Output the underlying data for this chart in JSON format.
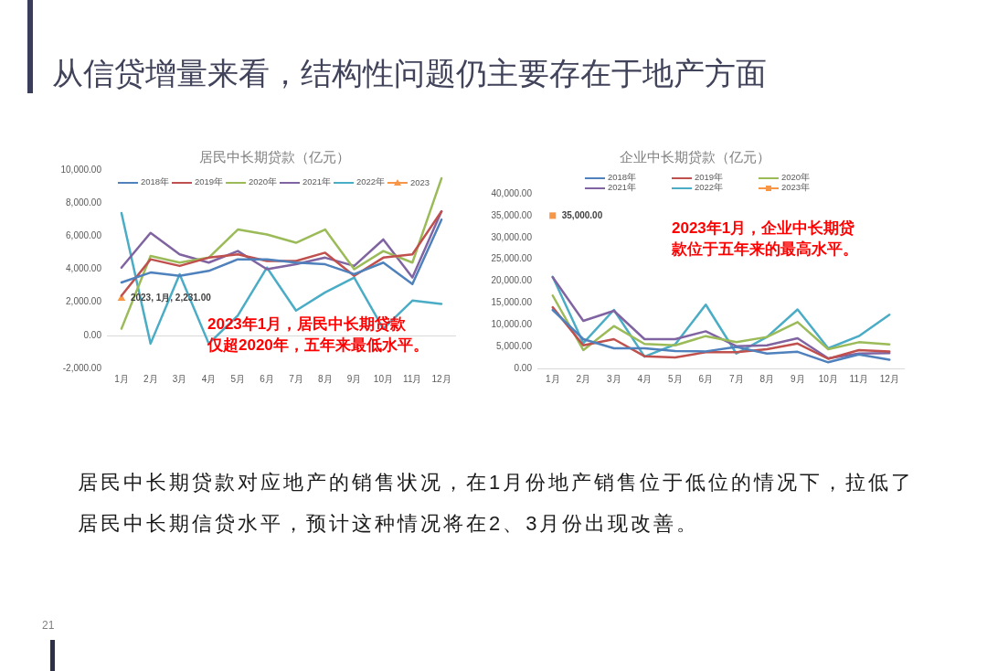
{
  "chart_data": [
    {
      "type": "other",
      "title": "从信贷增量来看，结构性问题仍主要存在于地产方面"
    },
    {
      "type": "line",
      "title": "居民中长期贷款（亿元）",
      "categories": [
        "1月",
        "2月",
        "3月",
        "4月",
        "5月",
        "6月",
        "7月",
        "8月",
        "9月",
        "10月",
        "11月",
        "12月"
      ],
      "series": [
        {
          "name": "2018年",
          "color": "#4f81bd",
          "values": [
            3200,
            3800,
            3600,
            3900,
            4600,
            4600,
            4400,
            4300,
            3700,
            4400,
            3100,
            7000
          ]
        },
        {
          "name": "2019年",
          "color": "#c0504d",
          "values": [
            2400,
            4600,
            4200,
            4700,
            4900,
            4500,
            4500,
            5000,
            3600,
            4700,
            4900,
            7500
          ]
        },
        {
          "name": "2020年",
          "color": "#9bbb59",
          "values": [
            400,
            4800,
            4400,
            4700,
            6400,
            6100,
            5600,
            6400,
            4000,
            5100,
            4400,
            9500
          ]
        },
        {
          "name": "2021年",
          "color": "#8064a2",
          "values": [
            4100,
            6200,
            4900,
            4400,
            5100,
            4000,
            4300,
            4700,
            4200,
            5800,
            3500,
            7500
          ]
        },
        {
          "name": "2022年",
          "color": "#4bacc6",
          "values": [
            7400,
            -500,
            3700,
            -500,
            1200,
            4100,
            1500,
            2600,
            3500,
            400,
            2100,
            1900
          ]
        },
        {
          "name": "2023",
          "color": "#f79646",
          "marker": "triangle",
          "values": [
            2231,
            null,
            null,
            null,
            null,
            null,
            null,
            null,
            null,
            null,
            null,
            null
          ],
          "value_labels": [
            "2023, 1月, 2,231.00",
            null,
            null,
            null,
            null,
            null,
            null,
            null,
            null,
            null,
            null,
            null
          ]
        }
      ],
      "ylim": [
        -2000,
        10000
      ],
      "yticks": [
        {
          "value": -2000,
          "label": "-2,000.00"
        },
        {
          "value": 0,
          "label": "0.00"
        },
        {
          "value": 2000,
          "label": "2,000.00"
        },
        {
          "value": 4000,
          "label": "4,000.00"
        },
        {
          "value": 6000,
          "label": "6,000.00"
        },
        {
          "value": 8000,
          "label": "8,000.00"
        },
        {
          "value": 10000,
          "label": "10,000.00"
        }
      ],
      "legend": "top",
      "marker": "none",
      "annotations": [
        "2023年1月，居民中长期贷款仅超2020年，五年来最低水平。"
      ]
    },
    {
      "type": "line",
      "title": "企业中长期贷款（亿元）",
      "categories": [
        "1月",
        "2月",
        "3月",
        "4月",
        "5月",
        "6月",
        "7月",
        "8月",
        "9月",
        "10月",
        "11月",
        "12月"
      ],
      "series": [
        {
          "name": "2018年",
          "color": "#4f81bd",
          "values": [
            13400,
            6700,
            4600,
            4600,
            4000,
            3900,
            4900,
            3400,
            3800,
            1400,
            3200,
            2000
          ]
        },
        {
          "name": "2019年",
          "color": "#c0504d",
          "values": [
            14000,
            5300,
            6700,
            2800,
            2500,
            3700,
            3700,
            4400,
            5700,
            2200,
            4200,
            3900
          ]
        },
        {
          "name": "2020年",
          "color": "#9bbb59",
          "values": [
            16700,
            4200,
            9700,
            5600,
            5300,
            7400,
            6000,
            7200,
            10600,
            4400,
            6000,
            5500
          ]
        },
        {
          "name": "2021年",
          "color": "#8064a2",
          "values": [
            20900,
            10900,
            13200,
            6700,
            6700,
            8500,
            5100,
            5300,
            6900,
            2300,
            3400,
            3500
          ]
        },
        {
          "name": "2022年",
          "color": "#4bacc6",
          "values": [
            21000,
            5800,
            13400,
            2700,
            5500,
            14600,
            3400,
            7200,
            13500,
            4600,
            7400,
            12300
          ]
        },
        {
          "name": "2023年",
          "color": "#f79646",
          "marker": "square",
          "values": [
            35000,
            null,
            null,
            null,
            null,
            null,
            null,
            null,
            null,
            null,
            null,
            null
          ],
          "value_labels": [
            "35,000.00",
            null,
            null,
            null,
            null,
            null,
            null,
            null,
            null,
            null,
            null,
            null
          ]
        }
      ],
      "ylim": [
        0,
        40000
      ],
      "yticks": [
        {
          "value": 0,
          "label": "0.00"
        },
        {
          "value": 5000,
          "label": "5,000.00"
        },
        {
          "value": 10000,
          "label": "10,000.00"
        },
        {
          "value": 15000,
          "label": "15,000.00"
        },
        {
          "value": 20000,
          "label": "20,000.00"
        },
        {
          "value": 25000,
          "label": "25,000.00"
        },
        {
          "value": 30000,
          "label": "30,000.00"
        },
        {
          "value": 35000,
          "label": "35,000.00"
        },
        {
          "value": 40000,
          "label": "40,000.00"
        }
      ],
      "legend": "top",
      "marker": "none",
      "annotations": [
        "2023年1月，企业中长期贷款位于五年来的最高水平。"
      ]
    },
    {
      "type": "other",
      "annotations": [
        "居民中长期贷款对应地产的销售状况，在1月份地产销售位于低位的情况下，拉低了居民中长期信贷水平，预计这种情况将在2、3月份出现改善。",
        "21"
      ]
    }
  ]
}
